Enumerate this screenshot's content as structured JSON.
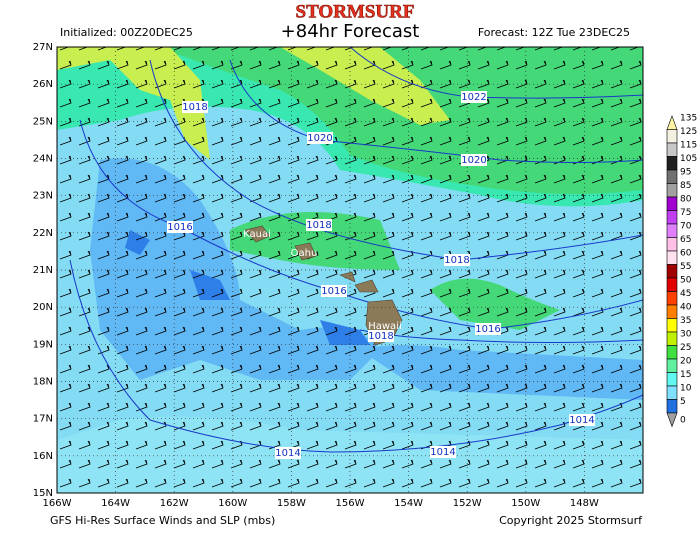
{
  "header": {
    "brand": "STORMSURF",
    "title": "+84hr Forecast",
    "initialized": "Initialized: 00Z20DEC25",
    "forecast": "Forecast: 12Z Tue 23DEC25"
  },
  "footer": {
    "product": "GFS Hi-Res Surface Winds and SLP (mbs)",
    "copyright": "Copyright 2025 Stormsurf"
  },
  "map": {
    "lat_ticks": [
      "27N",
      "26N",
      "25N",
      "24N",
      "23N",
      "22N",
      "21N",
      "20N",
      "19N",
      "18N",
      "17N",
      "16N",
      "15N"
    ],
    "lon_ticks": [
      "166W",
      "164W",
      "162W",
      "160W",
      "158W",
      "156W",
      "154W",
      "152W",
      "150W",
      "148W"
    ],
    "isobar_labels": [
      "1018",
      "1022",
      "1020",
      "1020",
      "1016",
      "1018",
      "1018",
      "1016",
      "1016",
      "1018",
      "1014",
      "1014",
      "1014"
    ],
    "place_labels": [
      "Kauai",
      "Oahu",
      "Hawaii"
    ]
  },
  "colorbar": {
    "ticks": [
      135,
      125,
      115,
      105,
      95,
      85,
      80,
      75,
      70,
      65,
      60,
      55,
      50,
      45,
      40,
      35,
      30,
      25,
      20,
      15,
      10,
      5,
      0
    ],
    "colors": [
      "#fff2a0",
      "#f4f0e0",
      "#c8c8c8",
      "#202020",
      "#707070",
      "#a0a0a0",
      "#a000d0",
      "#c040f0",
      "#e080ff",
      "#ffc0e8",
      "#ffe0f0",
      "#a00000",
      "#e00000",
      "#ff4000",
      "#ff8000",
      "#ffff00",
      "#c0f000",
      "#40e040",
      "#60f0a0",
      "#60f8f0",
      "#80e0ff",
      "#2070e0",
      "#a0a0a0"
    ]
  }
}
